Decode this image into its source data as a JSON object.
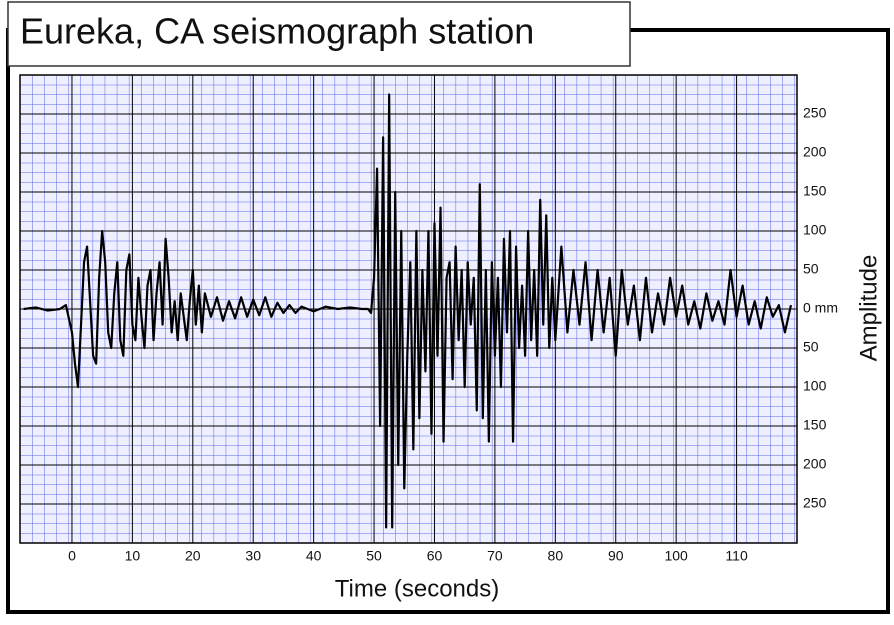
{
  "chart_data": {
    "type": "line",
    "title": "Eureka, CA seismograph station",
    "x_label": "Time (seconds)",
    "y_label": "Amplitude",
    "color": "#000000",
    "grid": true,
    "xlim": [
      -8.6,
      120
    ],
    "ylim": [
      -300,
      300
    ],
    "xticks": [
      0,
      10,
      20,
      30,
      40,
      50,
      60,
      70,
      80,
      90,
      100,
      110
    ],
    "yticks": [
      250,
      200,
      150,
      100,
      50,
      {
        "value": 0,
        "label": "0 mm"
      },
      {
        "value": -50,
        "label": "50"
      },
      {
        "value": -100,
        "label": "100"
      },
      {
        "value": -150,
        "label": "150"
      },
      {
        "value": -200,
        "label": "200"
      },
      {
        "value": -250,
        "label": "250"
      }
    ],
    "x": [
      -8,
      -6,
      -4,
      -2,
      -1,
      0,
      0.5,
      1,
      1.5,
      2,
      2.5,
      3,
      3.5,
      4,
      4.5,
      5,
      5.5,
      6,
      6.5,
      7,
      7.5,
      8,
      8.5,
      9,
      9.5,
      10,
      10.5,
      11,
      11.5,
      12,
      12.5,
      13,
      13.5,
      14,
      14.5,
      15,
      15.5,
      16,
      16.5,
      17,
      17.5,
      18,
      18.5,
      19,
      19.5,
      20,
      20.5,
      21,
      21.5,
      22,
      23,
      24,
      25,
      26,
      27,
      28,
      29,
      30,
      31,
      32,
      33,
      34,
      35,
      36,
      37,
      38,
      40,
      42,
      44,
      46,
      48,
      49,
      49.5,
      50,
      50.5,
      51,
      51.5,
      52,
      52.5,
      53,
      53.5,
      54,
      54.5,
      55,
      55.5,
      56,
      56.5,
      57,
      57.5,
      58,
      58.5,
      59,
      59.5,
      60,
      60.5,
      61,
      61.5,
      62,
      62.5,
      63,
      63.5,
      64,
      64.5,
      65,
      65.5,
      66,
      66.5,
      67,
      67.5,
      68,
      68.5,
      69,
      69.5,
      70,
      70.5,
      71,
      71.5,
      72,
      72.5,
      73,
      73.5,
      74,
      74.5,
      75,
      75.5,
      76,
      76.5,
      77,
      77.5,
      78,
      78.5,
      79,
      79.5,
      80,
      81,
      82,
      83,
      84,
      85,
      86,
      87,
      88,
      89,
      90,
      91,
      92,
      93,
      94,
      95,
      96,
      97,
      98,
      99,
      100,
      101,
      102,
      103,
      104,
      105,
      106,
      107,
      108,
      109,
      110,
      111,
      112,
      113,
      114,
      115,
      116,
      117,
      118,
      119
    ],
    "values": [
      0,
      2,
      -2,
      0,
      5,
      -30,
      -70,
      -100,
      -20,
      60,
      80,
      10,
      -60,
      -70,
      40,
      100,
      60,
      -30,
      -50,
      20,
      60,
      -40,
      -60,
      50,
      70,
      -20,
      -40,
      40,
      -10,
      -50,
      30,
      50,
      -40,
      20,
      60,
      -20,
      90,
      40,
      -30,
      10,
      -40,
      20,
      -10,
      -40,
      10,
      50,
      -20,
      30,
      -30,
      20,
      -10,
      15,
      -15,
      10,
      -12,
      15,
      -10,
      12,
      -8,
      15,
      -10,
      8,
      -5,
      5,
      -5,
      3,
      -3,
      3,
      0,
      2,
      0,
      0,
      -5,
      40,
      180,
      -150,
      220,
      -280,
      275,
      -280,
      150,
      -200,
      100,
      -230,
      -60,
      60,
      -180,
      100,
      -140,
      50,
      -80,
      100,
      -160,
      110,
      -60,
      130,
      -170,
      40,
      60,
      -90,
      80,
      -40,
      50,
      -100,
      60,
      -20,
      40,
      -130,
      160,
      -140,
      50,
      -170,
      60,
      -60,
      40,
      -100,
      90,
      -30,
      100,
      -170,
      80,
      -50,
      30,
      -60,
      100,
      -40,
      50,
      -60,
      140,
      -20,
      120,
      -50,
      40,
      -40,
      80,
      -30,
      50,
      -20,
      60,
      -40,
      50,
      -30,
      40,
      -60,
      50,
      -20,
      30,
      -40,
      40,
      -30,
      20,
      -20,
      40,
      -10,
      30,
      -20,
      10,
      -25,
      20,
      -15,
      10,
      -20,
      50,
      -10,
      30,
      -20,
      10,
      -25,
      15,
      -10,
      5,
      -30,
      5
    ]
  }
}
